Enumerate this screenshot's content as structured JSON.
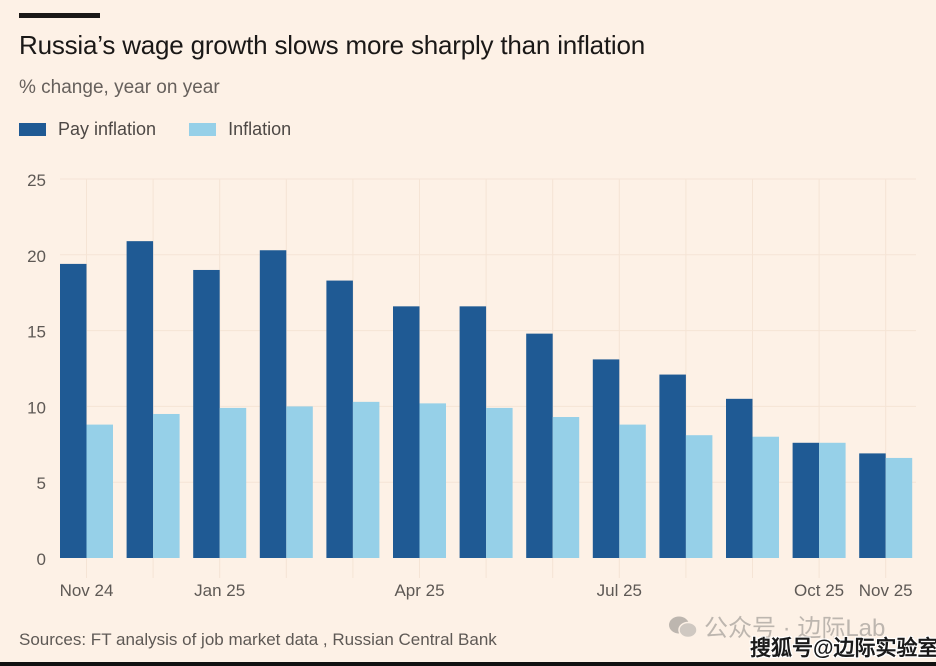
{
  "header": {
    "title": "Russia’s wage growth slows more sharply than inflation",
    "subtitle": "% change, year on year"
  },
  "legend": [
    {
      "label": "Pay inflation",
      "color": "#1f5a94"
    },
    {
      "label": "Inflation",
      "color": "#96d0e8"
    }
  ],
  "footer": {
    "source": "Sources: FT analysis of job market data , Russian Central Bank"
  },
  "watermarks": {
    "wechat": "公众号 · 边际Lab",
    "sohu": "搜狐号@边际实验室"
  },
  "chart_data": {
    "type": "bar",
    "title": "Russia’s wage growth slows more sharply than inflation",
    "subtitle": "% change, year on year",
    "xlabel": "",
    "ylabel": "% change, year on year",
    "ylim": [
      0,
      25
    ],
    "yticks": [
      0,
      5,
      10,
      15,
      20,
      25
    ],
    "grid": true,
    "legend_position": "top-left",
    "categories": [
      "Nov 24",
      "Dec 24",
      "Jan 25",
      "Feb 25",
      "Mar 25",
      "Apr 25",
      "May 25",
      "Jun 25",
      "Jul 25",
      "Aug 25",
      "Sep 25",
      "Oct 25",
      "Nov 25"
    ],
    "xtick_labels": [
      {
        "index": 0,
        "label": "Nov 24"
      },
      {
        "index": 2,
        "label": "Jan 25"
      },
      {
        "index": 5,
        "label": "Apr 25"
      },
      {
        "index": 8,
        "label": "Jul 25"
      },
      {
        "index": 11,
        "label": "Oct 25"
      },
      {
        "index": 12,
        "label": "Nov 25"
      }
    ],
    "series": [
      {
        "name": "Pay inflation",
        "color": "#1f5a94",
        "values": [
          19.4,
          20.9,
          19.0,
          20.3,
          18.3,
          16.6,
          16.6,
          14.8,
          13.1,
          12.1,
          10.5,
          7.6,
          6.9
        ]
      },
      {
        "name": "Inflation",
        "color": "#96d0e8",
        "values": [
          8.8,
          9.5,
          9.9,
          10.0,
          10.3,
          10.2,
          9.9,
          9.3,
          8.8,
          8.1,
          8.0,
          7.6,
          6.6
        ]
      }
    ]
  }
}
